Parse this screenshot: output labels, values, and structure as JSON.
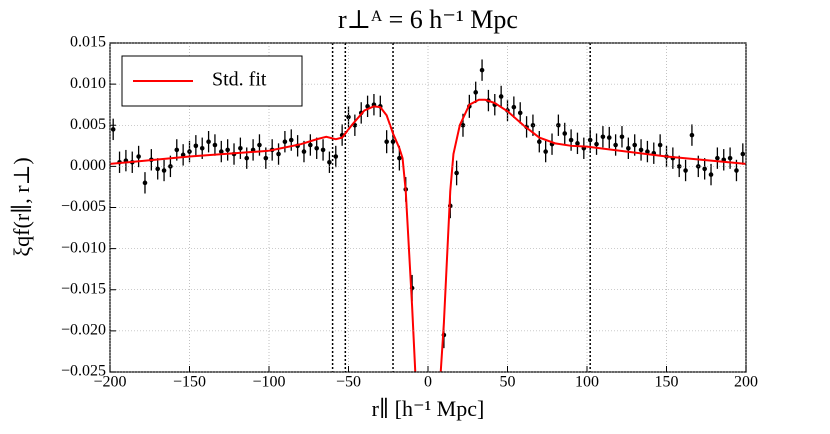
{
  "chart_data": {
    "type": "scatter",
    "title": "r⊥ᴬ = 6 h⁻¹ Mpc",
    "x_label": "r∥ [h⁻¹ Mpc]",
    "y_label": "ξqf(r∥, r⊥)",
    "xlim": [
      -200,
      200
    ],
    "ylim": [
      -0.025,
      0.015
    ],
    "xticks": [
      {
        "value": -200,
        "label": "−200"
      },
      {
        "value": -150,
        "label": "−150"
      },
      {
        "value": -100,
        "label": "−100"
      },
      {
        "value": -50,
        "label": "−50"
      },
      0,
      50,
      100,
      150,
      200
    ],
    "yticks": [
      {
        "value": -0.025,
        "label": "−0.025"
      },
      {
        "value": -0.02,
        "label": "−0.020"
      },
      {
        "value": -0.015,
        "label": "−0.015"
      },
      {
        "value": -0.01,
        "label": "−0.010"
      },
      {
        "value": -0.005,
        "label": "−0.005"
      },
      {
        "value": 0,
        "label": "0.000"
      },
      0.005,
      {
        "value": 0.01,
        "label": "0.010"
      },
      0.015
    ],
    "grid": true,
    "legend": "upper left",
    "vlines": [
      -60,
      -52,
      -22,
      102
    ],
    "series": [
      {
        "type": "errorbar",
        "color": "#000000",
        "x": [
          -198,
          -194,
          -190,
          -186,
          -182,
          -178,
          -174,
          -170,
          -166,
          -162,
          -158,
          -154,
          -150,
          -146,
          -142,
          -138,
          -134,
          -130,
          -126,
          -122,
          -118,
          -114,
          -110,
          -106,
          -102,
          -98,
          -94,
          -90,
          -86,
          -82,
          -78,
          -74,
          -70,
          -66,
          -62,
          -58,
          -54,
          -50,
          -46,
          -42,
          -38,
          -34,
          -30,
          -26,
          -22,
          -18,
          -14,
          -10,
          10,
          14,
          18,
          22,
          26,
          30,
          34,
          38,
          42,
          46,
          50,
          54,
          58,
          62,
          66,
          70,
          74,
          78,
          82,
          86,
          90,
          94,
          98,
          102,
          106,
          110,
          114,
          118,
          122,
          126,
          130,
          134,
          138,
          142,
          146,
          150,
          154,
          158,
          162,
          166,
          170,
          174,
          178,
          182,
          186,
          190,
          194,
          198
        ],
        "values": [
          0.0045,
          0.0005,
          0.0007,
          0.0005,
          0.0012,
          -0.002,
          0.0008,
          -0.0003,
          -0.0005,
          0.0,
          0.002,
          0.0014,
          0.0018,
          0.0025,
          0.0022,
          0.003,
          0.0026,
          0.0018,
          0.002,
          0.0015,
          0.0022,
          0.001,
          0.002,
          0.0026,
          0.001,
          0.002,
          0.0015,
          0.003,
          0.0032,
          0.0025,
          0.0018,
          0.0026,
          0.0022,
          0.002,
          0.0005,
          0.0012,
          0.0038,
          0.006,
          0.005,
          0.0065,
          0.0073,
          0.0075,
          0.0073,
          0.003,
          0.003,
          0.001,
          -0.0028,
          -0.0148,
          -0.0205,
          -0.0048,
          -0.0008,
          0.005,
          0.0073,
          0.009,
          0.0117,
          0.008,
          0.0075,
          0.0085,
          0.0068,
          0.0072,
          0.0065,
          0.0048,
          0.005,
          0.003,
          0.0018,
          0.0027,
          0.005,
          0.004,
          0.0032,
          0.0028,
          0.0022,
          0.0032,
          0.0027,
          0.0036,
          0.0035,
          0.0026,
          0.0036,
          0.0022,
          0.0026,
          0.002,
          0.0018,
          0.0016,
          0.0026,
          0.0012,
          0.001,
          0.0,
          -0.0005,
          0.0038,
          0.0,
          -0.0003,
          -0.001,
          0.001,
          0.0008,
          0.001,
          -0.0005,
          0.0015
        ],
        "errors": [
          0.0013,
          0.0013,
          0.0013,
          0.0013,
          0.0013,
          0.0013,
          0.0013,
          0.0013,
          0.0013,
          0.0013,
          0.0013,
          0.0013,
          0.0013,
          0.0013,
          0.0013,
          0.0013,
          0.0013,
          0.0013,
          0.0013,
          0.0013,
          0.0013,
          0.0013,
          0.0013,
          0.0013,
          0.0013,
          0.0013,
          0.0013,
          0.0013,
          0.0013,
          0.0013,
          0.0013,
          0.0013,
          0.0013,
          0.0013,
          0.0013,
          0.0013,
          0.0013,
          0.0013,
          0.0013,
          0.0013,
          0.0013,
          0.0013,
          0.0013,
          0.0014,
          0.0014,
          0.0015,
          0.0015,
          0.0016,
          0.0016,
          0.0015,
          0.0015,
          0.0014,
          0.0014,
          0.0013,
          0.0013,
          0.0013,
          0.0013,
          0.0013,
          0.0013,
          0.0013,
          0.0013,
          0.0013,
          0.0013,
          0.0013,
          0.0013,
          0.0013,
          0.0013,
          0.0013,
          0.0013,
          0.0013,
          0.0013,
          0.0013,
          0.0013,
          0.0013,
          0.0013,
          0.0013,
          0.0013,
          0.0013,
          0.0013,
          0.0013,
          0.0013,
          0.0013,
          0.0013,
          0.0013,
          0.0013,
          0.0013,
          0.0013,
          0.0013,
          0.0013,
          0.0013,
          0.0013,
          0.0013,
          0.0013,
          0.0013,
          0.0013,
          0.0013
        ]
      },
      {
        "type": "line",
        "name": "Std. fit",
        "color": "#ff0000",
        "x": [
          -200,
          -150,
          -100,
          -80,
          -70,
          -64,
          -58,
          -54,
          -48,
          -40,
          -34,
          -30,
          -26,
          -22,
          -18,
          -16,
          -14,
          -12,
          -10,
          -8,
          null,
          8,
          10,
          12,
          14,
          16,
          20,
          26,
          32,
          36,
          42,
          50,
          60,
          70,
          80,
          90,
          100,
          150,
          200
        ],
        "values": [
          0.0003,
          0.0012,
          0.0019,
          0.0027,
          0.0033,
          0.0036,
          0.0033,
          0.0035,
          0.005,
          0.0068,
          0.0073,
          0.0072,
          0.0062,
          0.004,
          0.0022,
          0.001,
          -0.003,
          -0.01,
          -0.017,
          -0.025,
          null,
          -0.025,
          -0.019,
          -0.011,
          -0.003,
          0.0015,
          0.005,
          0.0075,
          0.0081,
          0.0081,
          0.0077,
          0.0067,
          0.005,
          0.0035,
          0.0028,
          0.0025,
          0.0024,
          0.0012,
          0.0003
        ]
      }
    ]
  }
}
